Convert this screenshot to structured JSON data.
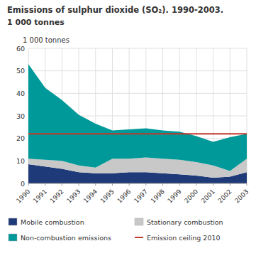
{
  "chart_data": {
    "type": "area",
    "stacked": true,
    "title": "Emissions of sulphur dioxide (SO₂). 1990-2003.",
    "subtitle": "1 000 tonnes",
    "y_label": "1 000 tonnes",
    "x": [
      1990,
      1991,
      1992,
      1993,
      1994,
      1995,
      1996,
      1997,
      1998,
      1999,
      2000,
      2001,
      2002,
      2003
    ],
    "xlim": [
      1990,
      2003
    ],
    "xticks": [
      1990,
      1991,
      1992,
      1993,
      1994,
      1995,
      1996,
      1997,
      1998,
      1999,
      2000,
      2001,
      2002,
      2003
    ],
    "ylim": [
      0,
      60
    ],
    "yticks": [
      0,
      10,
      20,
      30,
      40,
      50,
      60
    ],
    "grid": true,
    "legend": "bottom",
    "series": [
      {
        "name": "Mobile combustion",
        "color": "#1e3a78",
        "values": [
          8.5,
          7.5,
          6.5,
          5.0,
          4.5,
          4.5,
          5.0,
          5.0,
          4.5,
          4.0,
          3.5,
          2.5,
          3.0,
          5.0
        ]
      },
      {
        "name": "Stationary combustion",
        "color": "#c8c8c8",
        "values": [
          2.5,
          3.0,
          3.5,
          3.0,
          2.5,
          6.5,
          6.0,
          6.5,
          6.5,
          6.5,
          6.0,
          5.5,
          2.5,
          6.0
        ]
      },
      {
        "name": "Non-combustion emissions",
        "color": "#009999",
        "values": [
          42.0,
          32.0,
          27.0,
          22.5,
          19.5,
          12.5,
          13.0,
          13.0,
          12.5,
          12.5,
          11.5,
          10.5,
          15.0,
          11.0
        ]
      }
    ],
    "reference_line": {
      "name": "Emission ceiling 2010",
      "value": 22.0,
      "color": "#c0392b"
    }
  }
}
